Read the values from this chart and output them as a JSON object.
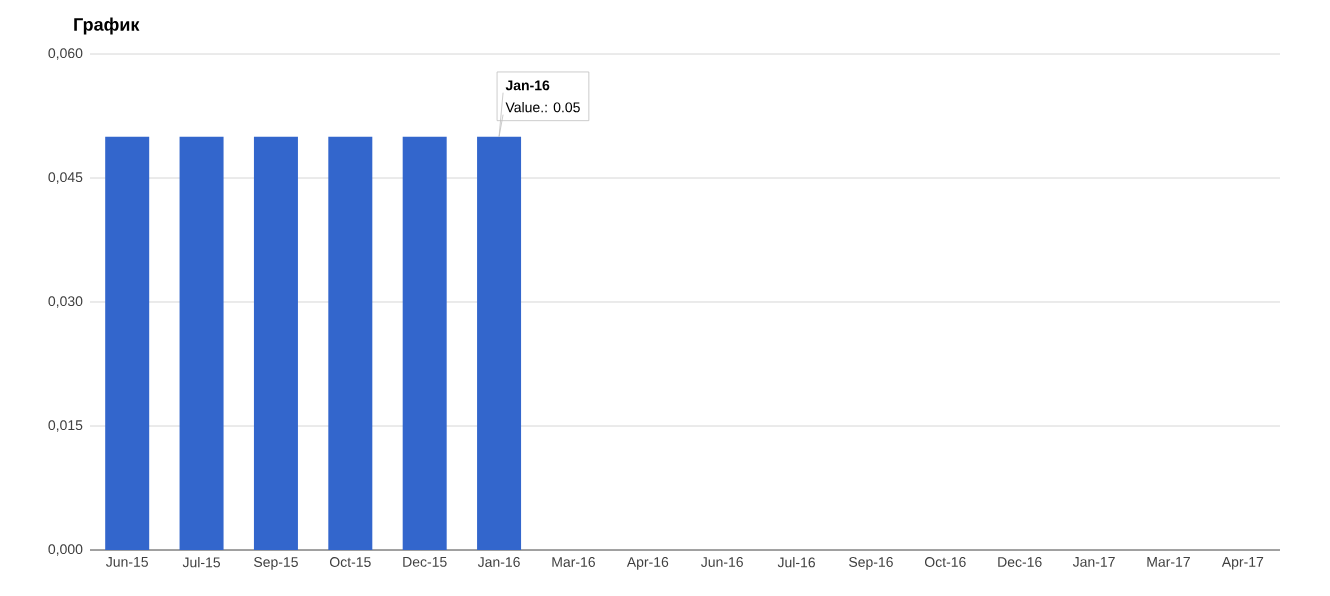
{
  "chart_data": {
    "type": "bar",
    "title": "График",
    "categories": [
      "Jun-15",
      "Jul-15",
      "Sep-15",
      "Oct-15",
      "Dec-15",
      "Jan-16",
      "Mar-16",
      "Apr-16",
      "Jun-16",
      "Jul-16",
      "Sep-16",
      "Oct-16",
      "Dec-16",
      "Jan-17",
      "Mar-17",
      "Apr-17"
    ],
    "values": [
      0.05,
      0.05,
      0.05,
      0.05,
      0.05,
      0.05,
      null,
      null,
      null,
      null,
      null,
      null,
      null,
      null,
      null,
      null
    ],
    "color": "#3366cc",
    "ylim": [
      0,
      0.06
    ],
    "yticks": [
      {
        "value": 0,
        "label": "0,000"
      },
      {
        "value": 0.015,
        "label": "0,015"
      },
      {
        "value": 0.03,
        "label": "0,030"
      },
      {
        "value": 0.045,
        "label": "0,045"
      },
      {
        "value": 0.06,
        "label": "0,060"
      }
    ],
    "grid": "y",
    "annotations": [
      {
        "text": "**Jan-16**",
        "x": "Jan-16",
        "y": 0.05
      },
      {
        "text": "Value.: 0.05",
        "x": "Jan-16",
        "y": 0.05
      }
    ]
  }
}
